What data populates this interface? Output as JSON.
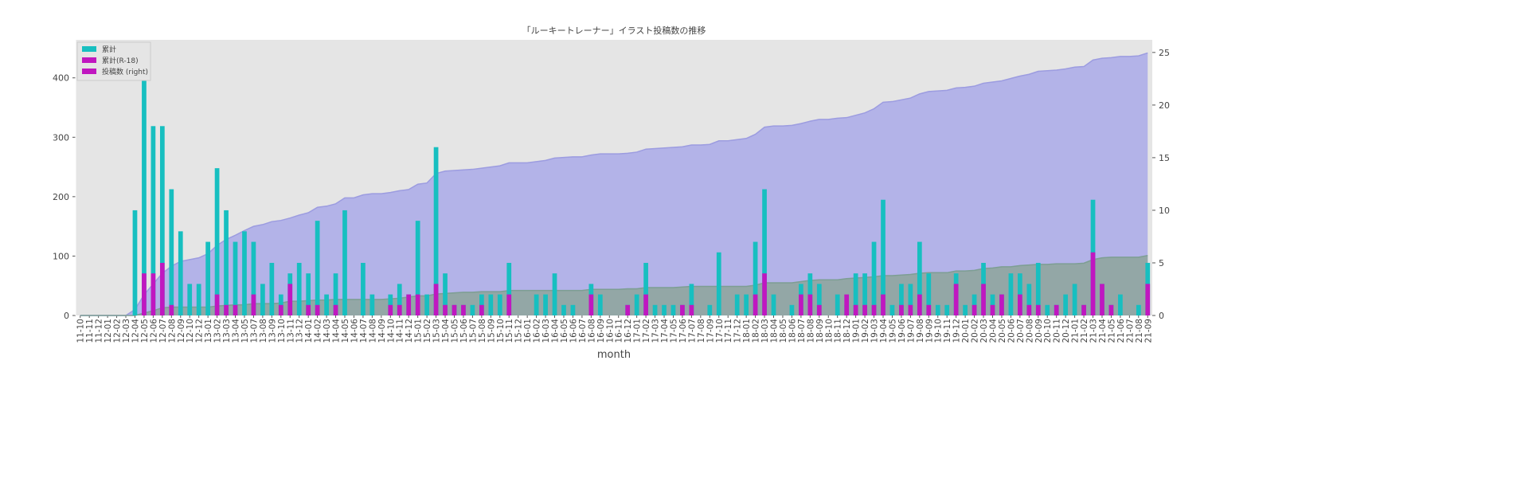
{
  "chart_data": {
    "type": "bar",
    "title": "「ルーキートレーナー」イラスト投稿数の推移",
    "xlabel": "month",
    "categories": [
      "11-10",
      "11-11",
      "11-12",
      "12-01",
      "12-02",
      "12-03",
      "12-04",
      "12-05",
      "12-06",
      "12-07",
      "12-08",
      "12-09",
      "12-10",
      "12-12",
      "13-01",
      "13-02",
      "13-03",
      "13-04",
      "13-05",
      "13-07",
      "13-08",
      "13-09",
      "13-10",
      "13-11",
      "13-12",
      "14-01",
      "14-02",
      "14-03",
      "14-04",
      "14-05",
      "14-06",
      "14-07",
      "14-08",
      "14-09",
      "14-10",
      "14-11",
      "14-12",
      "15-01",
      "15-02",
      "15-03",
      "15-04",
      "15-05",
      "15-06",
      "15-07",
      "15-08",
      "15-09",
      "15-10",
      "15-11",
      "15-12",
      "16-01",
      "16-02",
      "16-03",
      "16-04",
      "16-05",
      "16-06",
      "16-07",
      "16-08",
      "16-09",
      "16-10",
      "16-11",
      "16-12",
      "17-01",
      "17-02",
      "17-03",
      "17-04",
      "17-05",
      "17-06",
      "17-07",
      "17-08",
      "17-09",
      "17-10",
      "17-11",
      "17-12",
      "18-01",
      "18-02",
      "18-03",
      "18-04",
      "18-05",
      "18-06",
      "18-07",
      "18-08",
      "18-09",
      "18-10",
      "18-11",
      "18-12",
      "19-01",
      "19-02",
      "19-03",
      "19-04",
      "19-05",
      "19-06",
      "19-07",
      "19-08",
      "19-09",
      "19-10",
      "19-11",
      "19-12",
      "20-01",
      "20-02",
      "20-03",
      "20-04",
      "20-05",
      "20-06",
      "20-07",
      "20-08",
      "20-09",
      "20-10",
      "20-11",
      "20-12",
      "21-01",
      "21-02",
      "21-03",
      "21-04",
      "21-05",
      "21-06",
      "21-07",
      "21-08",
      "21-09"
    ],
    "series": [
      {
        "type": "area",
        "color": "#b3b3e8",
        "line_color": "#9c9ce0",
        "values": [
          0,
          0,
          0,
          0,
          0,
          0,
          10,
          35,
          53,
          71,
          83,
          91,
          94,
          97,
          104,
          118,
          128,
          135,
          143,
          150,
          153,
          158,
          160,
          164,
          169,
          173,
          182,
          184,
          188,
          198,
          198,
          203,
          205,
          205,
          207,
          210,
          212,
          221,
          223,
          239,
          243,
          244,
          245,
          246,
          248,
          250,
          252,
          257,
          257,
          257,
          259,
          261,
          265,
          266,
          267,
          267,
          270,
          272,
          272,
          272,
          273,
          275,
          280,
          281,
          282,
          283,
          284,
          287,
          287,
          288,
          294,
          294,
          296,
          298,
          305,
          317,
          319,
          319,
          320,
          323,
          327,
          330,
          330,
          332,
          333,
          337,
          341,
          348,
          359,
          360,
          363,
          366,
          373,
          377,
          378,
          379,
          383,
          384,
          386,
          391,
          393,
          395,
          399,
          403,
          406,
          411,
          412,
          413,
          415,
          418,
          419,
          430,
          433,
          434,
          436,
          436,
          437,
          442
        ]
      },
      {
        "type": "area",
        "color": "#93a7a6",
        "line_color": "#7d9e93",
        "values": [
          0,
          0,
          0,
          0,
          0,
          0,
          0,
          4,
          8,
          13,
          14,
          14,
          14,
          14,
          14,
          16,
          17,
          18,
          18,
          20,
          20,
          20,
          21,
          24,
          24,
          25,
          26,
          26,
          27,
          27,
          27,
          27,
          27,
          27,
          28,
          29,
          31,
          33,
          33,
          36,
          37,
          38,
          39,
          39,
          40,
          40,
          40,
          42,
          42,
          42,
          42,
          42,
          42,
          42,
          42,
          42,
          44,
          44,
          44,
          44,
          45,
          45,
          47,
          47,
          47,
          47,
          48,
          49,
          49,
          49,
          49,
          49,
          49,
          49,
          51,
          55,
          55,
          55,
          55,
          57,
          59,
          60,
          60,
          60,
          62,
          63,
          64,
          65,
          67,
          67,
          68,
          69,
          71,
          72,
          72,
          72,
          75,
          75,
          76,
          79,
          80,
          82,
          82,
          84,
          85,
          86,
          86,
          87,
          87,
          87,
          88,
          94,
          97,
          98,
          98,
          98,
          98,
          101
        ]
      },
      {
        "name": "累計",
        "type": "bar",
        "axis": "y2",
        "color": "#17bfc0",
        "values": [
          0,
          0,
          0,
          0,
          0,
          0,
          10,
          25,
          18,
          18,
          12,
          8,
          3,
          3,
          7,
          14,
          10,
          7,
          8,
          7,
          3,
          5,
          2,
          4,
          5,
          4,
          9,
          2,
          4,
          10,
          0,
          5,
          2,
          0,
          2,
          3,
          2,
          9,
          2,
          16,
          4,
          1,
          1,
          1,
          2,
          2,
          2,
          5,
          0,
          0,
          2,
          2,
          4,
          1,
          1,
          0,
          3,
          2,
          0,
          0,
          1,
          2,
          5,
          1,
          1,
          1,
          1,
          3,
          0,
          1,
          6,
          0,
          2,
          2,
          7,
          12,
          2,
          0,
          1,
          3,
          4,
          3,
          0,
          2,
          1,
          4,
          4,
          7,
          11,
          1,
          3,
          3,
          7,
          4,
          1,
          1,
          4,
          1,
          2,
          5,
          2,
          2,
          4,
          4,
          3,
          5,
          1,
          1,
          2,
          3,
          1,
          11,
          3,
          1,
          2,
          0,
          1,
          5
        ]
      },
      {
        "name": "累計(R-18)",
        "type": "bar",
        "axis": "y2",
        "color": "#c017c0",
        "values": [
          0,
          0,
          0,
          0,
          0,
          0,
          0,
          4,
          4,
          5,
          1,
          0,
          0,
          0,
          0,
          2,
          1,
          1,
          0,
          2,
          0,
          0,
          1,
          3,
          0,
          1,
          1,
          0,
          1,
          0,
          0,
          0,
          0,
          0,
          1,
          1,
          2,
          2,
          0,
          3,
          1,
          1,
          1,
          0,
          1,
          0,
          0,
          2,
          0,
          0,
          0,
          0,
          0,
          0,
          0,
          0,
          2,
          0,
          0,
          0,
          1,
          0,
          2,
          0,
          0,
          0,
          1,
          1,
          0,
          0,
          0,
          0,
          0,
          0,
          2,
          4,
          0,
          0,
          0,
          2,
          2,
          1,
          0,
          0,
          2,
          1,
          1,
          1,
          2,
          0,
          1,
          1,
          2,
          1,
          0,
          0,
          3,
          0,
          1,
          3,
          1,
          2,
          0,
          2,
          1,
          1,
          0,
          1,
          0,
          0,
          1,
          6,
          3,
          1,
          0,
          0,
          0,
          3
        ]
      }
    ],
    "extra_legend_entry": {
      "label": "投稿数 (right)",
      "color": "#c017c0"
    },
    "legend": "upper left",
    "grid": false,
    "ylim": [
      0,
      464
    ],
    "yticks": [
      0,
      100,
      200,
      300,
      400
    ],
    "y2lim": [
      0,
      26.2
    ],
    "y2ticks": [
      0,
      5,
      10,
      15,
      20,
      25
    ]
  }
}
